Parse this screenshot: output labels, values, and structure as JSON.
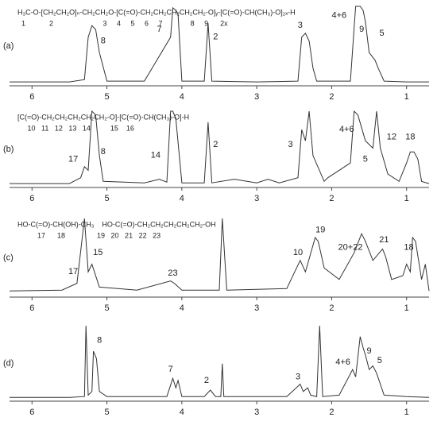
{
  "chart_data": [
    {
      "type": "line",
      "label": "(a)",
      "color": "#333333",
      "structure": [
        "H₃C-O-[CH₂CH₂O]ₙ-CH₂CH₂O-[C(=O)-CH₂CH₂CH₂CH₂CH₂-O]ᵧ-[C(=O)-CH(CH₃)-O]₂ₓ-H",
        "  1            2                         3     4     5     6     7              8     9      2x"
      ],
      "x": [
        6.3,
        5.5,
        5.3,
        5.25,
        5.2,
        5.15,
        5.1,
        5.0,
        4.5,
        4.15,
        4.12,
        4.08,
        4.05,
        4.0,
        3.7,
        3.65,
        3.6,
        3.0,
        2.45,
        2.4,
        2.35,
        2.3,
        2.25,
        2.2,
        1.75,
        1.68,
        1.62,
        1.58,
        1.55,
        1.5,
        1.42,
        1.38,
        1.3,
        1.0,
        0.7
      ],
      "values": [
        2,
        2,
        5,
        60,
        75,
        70,
        40,
        3,
        3,
        60,
        98,
        95,
        90,
        3,
        3,
        78,
        3,
        2,
        3,
        60,
        65,
        55,
        20,
        3,
        3,
        100,
        100,
        95,
        80,
        40,
        30,
        20,
        3,
        2,
        2
      ],
      "xlim": [
        6.3,
        0.7
      ],
      "ylim": [
        0,
        100
      ],
      "xticks": [
        6,
        5,
        4,
        3,
        2,
        1
      ],
      "annotations": [
        {
          "text": "8",
          "x": 5.05,
          "y": 55
        },
        {
          "text": "7",
          "x": 4.3,
          "y": 70
        },
        {
          "text": "2",
          "x": 3.55,
          "y": 60
        },
        {
          "text": "3",
          "x": 2.42,
          "y": 75
        },
        {
          "text": "4+6",
          "x": 1.9,
          "y": 88
        },
        {
          "text": "9",
          "x": 1.6,
          "y": 70
        },
        {
          "text": "5",
          "x": 1.33,
          "y": 65
        }
      ]
    },
    {
      "type": "line",
      "label": "(b)",
      "color": "#333333",
      "structure": [
        "[C(=O)-CH₂CH₂CH₂CH₂CH₂-O]-[C(=O)-CH(CH₃)-O]-H",
        "     10   11   12   13   14          15    16"
      ],
      "x": [
        6.3,
        5.5,
        5.35,
        5.3,
        5.25,
        5.2,
        5.15,
        5.1,
        5.05,
        4.5,
        4.3,
        4.2,
        4.15,
        4.12,
        4.08,
        4.0,
        3.7,
        3.65,
        3.6,
        3.3,
        3.0,
        2.85,
        2.7,
        2.45,
        2.4,
        2.35,
        2.3,
        2.25,
        2.1,
        2.05,
        1.9,
        1.75,
        1.7,
        1.65,
        1.55,
        1.45,
        1.4,
        1.35,
        1.25,
        1.1,
        1.0,
        0.95,
        0.9,
        0.85,
        0.8,
        0.7
      ],
      "values": [
        2,
        2,
        10,
        25,
        20,
        100,
        95,
        40,
        5,
        3,
        8,
        4,
        100,
        100,
        90,
        3,
        3,
        85,
        3,
        8,
        3,
        8,
        3,
        10,
        75,
        60,
        100,
        40,
        5,
        10,
        20,
        30,
        100,
        95,
        60,
        50,
        100,
        50,
        15,
        5,
        30,
        45,
        45,
        35,
        5,
        2
      ],
      "xlim": [
        6.3,
        0.7
      ],
      "ylim": [
        0,
        100
      ],
      "xticks": [
        6,
        5,
        4,
        3,
        2,
        1
      ],
      "annotations": [
        {
          "text": "17",
          "x": 5.45,
          "y": 35
        },
        {
          "text": "8",
          "x": 5.05,
          "y": 45
        },
        {
          "text": "14",
          "x": 4.35,
          "y": 40
        },
        {
          "text": "2",
          "x": 3.55,
          "y": 55
        },
        {
          "text": "3",
          "x": 2.55,
          "y": 55
        },
        {
          "text": "4+6",
          "x": 1.8,
          "y": 75
        },
        {
          "text": "5",
          "x": 1.55,
          "y": 35
        },
        {
          "text": "12",
          "x": 1.2,
          "y": 65
        },
        {
          "text": "18",
          "x": 0.95,
          "y": 65
        }
      ]
    },
    {
      "type": "line",
      "label": "(c)",
      "color": "#333333",
      "structure": [
        "HO-C(=O)-CH(OH)-CH₃    HO-C(=O)-CH₂CH₂CH₂CH₂CH₂-OH",
        "          17      18                19   20   21   22   23"
      ],
      "x": [
        6.3,
        5.6,
        5.4,
        5.3,
        5.25,
        5.2,
        5.1,
        4.6,
        4.15,
        4.1,
        4.0,
        3.6,
        3.5,
        3.46,
        3.4,
        2.6,
        2.42,
        2.35,
        2.22,
        2.18,
        2.1,
        1.9,
        1.7,
        1.6,
        1.55,
        1.45,
        1.32,
        1.28,
        1.2,
        1.05,
        1.0,
        0.95,
        0.92,
        0.88,
        0.8,
        0.75,
        0.7
      ],
      "values": [
        5,
        6,
        15,
        100,
        30,
        40,
        10,
        6,
        18,
        15,
        6,
        6,
        6,
        100,
        6,
        8,
        45,
        30,
        75,
        70,
        35,
        20,
        55,
        80,
        70,
        45,
        60,
        50,
        20,
        25,
        40,
        30,
        75,
        70,
        20,
        40,
        5
      ],
      "xlim": [
        6.3,
        0.7
      ],
      "ylim": [
        0,
        100
      ],
      "xticks": [
        6,
        5,
        4,
        3,
        2,
        1
      ],
      "annotations": [
        {
          "text": "17",
          "x": 5.45,
          "y": 30
        },
        {
          "text": "15",
          "x": 5.12,
          "y": 55
        },
        {
          "text": "23",
          "x": 4.12,
          "y": 28
        },
        {
          "text": "10",
          "x": 2.45,
          "y": 55
        },
        {
          "text": "19",
          "x": 2.15,
          "y": 85
        },
        {
          "text": "20+22",
          "x": 1.75,
          "y": 62
        },
        {
          "text": "21",
          "x": 1.3,
          "y": 72
        },
        {
          "text": "18",
          "x": 0.97,
          "y": 62
        }
      ]
    },
    {
      "type": "line",
      "label": "(d)",
      "color": "#333333",
      "x": [
        6.3,
        5.5,
        5.3,
        5.28,
        5.25,
        5.2,
        5.18,
        5.14,
        5.1,
        5.0,
        4.2,
        4.12,
        4.08,
        4.05,
        4.0,
        3.7,
        3.62,
        3.55,
        3.48,
        3.46,
        3.44,
        2.6,
        2.42,
        2.38,
        2.32,
        2.28,
        2.2,
        2.16,
        2.12,
        1.9,
        1.72,
        1.68,
        1.62,
        1.58,
        1.55,
        1.5,
        1.45,
        1.4,
        1.3,
        1.0,
        0.7
      ],
      "values": [
        2,
        2,
        3,
        100,
        5,
        10,
        65,
        55,
        10,
        3,
        3,
        28,
        15,
        25,
        3,
        3,
        12,
        3,
        3,
        48,
        3,
        3,
        20,
        10,
        15,
        5,
        3,
        100,
        3,
        5,
        40,
        30,
        85,
        70,
        60,
        40,
        45,
        35,
        5,
        3,
        2
      ],
      "xlim": [
        6.3,
        0.7
      ],
      "ylim": [
        0,
        100
      ],
      "xticks": [
        6,
        5,
        4,
        3,
        2,
        1
      ],
      "annotations": [
        {
          "text": "8",
          "x": 5.1,
          "y": 80
        },
        {
          "text": "7",
          "x": 4.15,
          "y": 40
        },
        {
          "text": "2",
          "x": 3.67,
          "y": 25
        },
        {
          "text": "3",
          "x": 2.45,
          "y": 30
        },
        {
          "text": "4+6",
          "x": 1.85,
          "y": 50
        },
        {
          "text": "9",
          "x": 1.5,
          "y": 65
        },
        {
          "text": "5",
          "x": 1.36,
          "y": 52
        }
      ]
    }
  ]
}
